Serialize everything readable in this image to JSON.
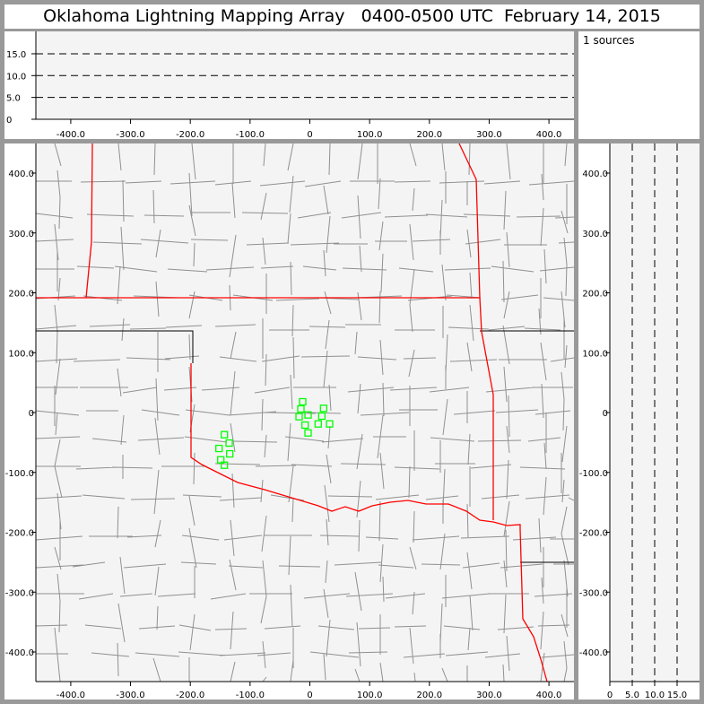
{
  "title": "Oklahoma Lightning Mapping Array   0400-0500 UTC  February 14, 2015",
  "info": {
    "sources_label": "1 sources"
  },
  "colors": {
    "background": "#999999",
    "plot_bg": "#f4f4f4",
    "state_border_ok": "#ff0000",
    "county_lines": "#909090",
    "sources": "#00ff00"
  },
  "chart_data": [
    {
      "type": "scatter",
      "panel": "height-vs-east-west",
      "xlim": [
        -460,
        440
      ],
      "ylim": [
        0,
        20
      ],
      "x_ticks": [
        "-400.0",
        "-300.0",
        "-200.0",
        "-100.0",
        "0",
        "100.0",
        "200.0",
        "300.0",
        "400.0"
      ],
      "y_ticks": [
        "0",
        "5.0",
        "10.0",
        "15.0"
      ],
      "grid": "dashed at 5, 10, 15"
    },
    {
      "type": "scatter",
      "panel": "plan-view-map",
      "xlim": [
        -460,
        440
      ],
      "ylim": [
        -450,
        450
      ],
      "x_ticks": [
        "-400.0",
        "-300.0",
        "-200.0",
        "-100.0",
        "0",
        "100.0",
        "200.0",
        "300.0",
        "400.0"
      ],
      "y_ticks": [
        "400.0",
        "300.0",
        "200.0",
        "100.0",
        "0",
        "-100.0",
        "-200.0",
        "-300.0",
        "-400.0"
      ],
      "marker": "hollow-square",
      "points": [
        [
          -12,
          18
        ],
        [
          -15,
          6
        ],
        [
          -18,
          -7
        ],
        [
          -3,
          -4
        ],
        [
          23,
          7
        ],
        [
          20,
          -6
        ],
        [
          -8,
          -21
        ],
        [
          14,
          -19
        ],
        [
          33,
          -19
        ],
        [
          -3,
          -34
        ],
        [
          -143,
          -37
        ],
        [
          -135,
          -51
        ],
        [
          -152,
          -60
        ],
        [
          -134,
          -69
        ],
        [
          -149,
          -79
        ],
        [
          -143,
          -88
        ]
      ]
    },
    {
      "type": "scatter",
      "panel": "north-south-vs-height",
      "xlim": [
        0,
        20
      ],
      "ylim": [
        -450,
        450
      ],
      "x_ticks": [
        "0",
        "5.0",
        "10.0",
        "15.0"
      ],
      "grid": "dashed at 5, 10, 15"
    }
  ]
}
